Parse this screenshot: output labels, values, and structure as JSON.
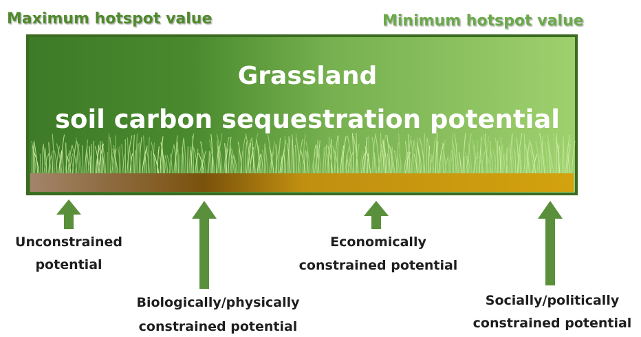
{
  "header": {
    "max_label": "Maximum hotspot value",
    "min_label": "Minimum hotspot  value"
  },
  "box": {
    "title_lines": [
      "Grassland",
      "soil carbon sequestration potential"
    ]
  },
  "constraints": [
    {
      "lines": [
        "Unconstrained",
        "potential"
      ]
    },
    {
      "lines": [
        "Biologically/physically",
        "constrained potential"
      ]
    },
    {
      "lines": [
        "Economically",
        "constrained potential"
      ]
    },
    {
      "lines": [
        "Socially/politically",
        "constrained potential"
      ]
    }
  ]
}
